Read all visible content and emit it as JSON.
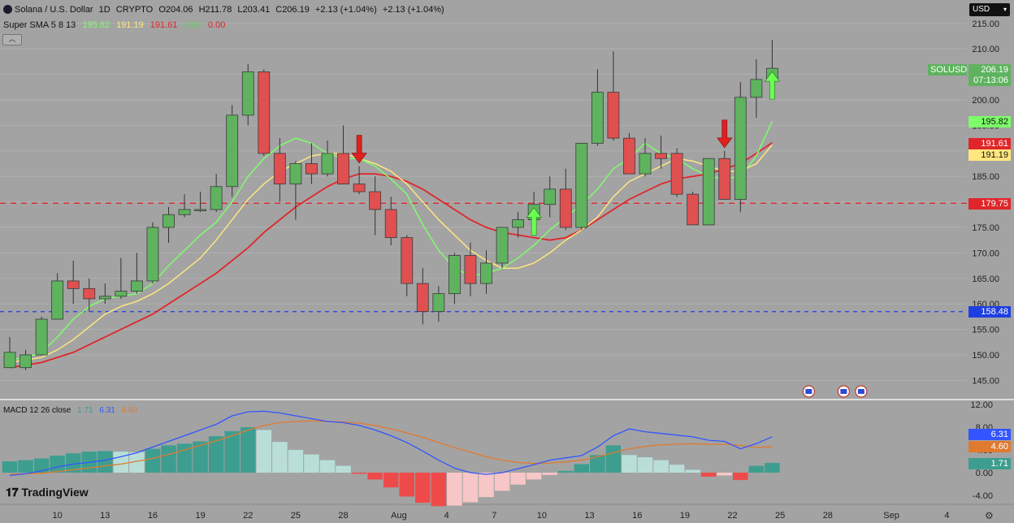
{
  "header": {
    "symbol_title": "Solana / U.S. Dollar",
    "interval": "1D",
    "market": "CRYPTO",
    "open": "O204.06",
    "high": "H211.78",
    "low": "L203.41",
    "close": "C206.19",
    "change": "+2.13 (+1.04%)",
    "change2": "+2.13 (+1.04%)"
  },
  "sma_legend": {
    "name": "Super SMA 5 8 13",
    "v1": "195.82",
    "v2": "191.19",
    "v3": "191.61",
    "v4": "0.00",
    "v5": "0.00"
  },
  "macd_legend": {
    "name": "MACD 12 26 close",
    "hist": "1.71",
    "macd": "6.31",
    "signal": "4.60"
  },
  "currency_button": "USD",
  "brand": "TradingView",
  "price_tags": {
    "symbol": "SOLUSD",
    "last": "206.19",
    "countdown": "07:13:06",
    "sma5": "195.82",
    "sma13": "191.61",
    "sma8": "191.19",
    "red_line": "179.75",
    "blue_line": "158.48",
    "macd": "6.31",
    "signal": "4.60",
    "hist": "1.71"
  },
  "colors": {
    "up": "#5fb35f",
    "down": "#e05050",
    "sma5": "#7dff6a",
    "sma8": "#ffe680",
    "sma13": "#e0262a",
    "red_line": "#e0262a",
    "blue_line": "#1e3fe0",
    "macd_line": "#3355ff",
    "signal_line": "#e07a30",
    "hist_up_strong": "#3d9e8f",
    "hist_up_weak": "#b9ded8",
    "hist_down_strong": "#ef4a4a",
    "hist_down_weak": "#f7c6c6",
    "background": "#a3a3a3"
  },
  "chart_data": {
    "type": "candlestick",
    "price_axis": {
      "ticks": [
        145,
        150,
        155,
        160,
        165,
        170,
        175,
        180,
        185,
        190,
        195,
        200,
        205,
        210,
        215
      ],
      "ylim": [
        143,
        217
      ]
    },
    "macd_axis": {
      "ticks": [
        -4,
        0,
        4,
        8,
        12
      ],
      "tick_labels": [
        "-4.00",
        "0.00",
        "4.00",
        "8.00",
        "12.00"
      ],
      "ylim": [
        -5,
        13
      ]
    },
    "x_tick_labels": [
      "10",
      "13",
      "16",
      "19",
      "22",
      "25",
      "28",
      "Aug",
      "4",
      "7",
      "10",
      "13",
      "16",
      "19",
      "22",
      "25",
      "28",
      "Sep",
      "4"
    ],
    "x_tick_index": [
      3,
      6,
      9,
      12,
      15,
      18,
      21,
      24.5,
      27.5,
      30.5,
      33.5,
      36.5,
      39.5,
      42.5,
      45.5,
      48.5,
      51.5,
      55.5,
      59
    ],
    "candles": [
      {
        "o": 147.5,
        "h": 153.5,
        "l": 147.5,
        "c": 150.5
      },
      {
        "o": 147.5,
        "h": 151,
        "l": 147,
        "c": 150
      },
      {
        "o": 150,
        "h": 157.5,
        "l": 150,
        "c": 157
      },
      {
        "o": 157,
        "h": 166,
        "l": 157,
        "c": 164.5
      },
      {
        "o": 164.5,
        "h": 168.5,
        "l": 160,
        "c": 163
      },
      {
        "o": 163,
        "h": 165,
        "l": 158.5,
        "c": 161
      },
      {
        "o": 161,
        "h": 164,
        "l": 160,
        "c": 161.5
      },
      {
        "o": 161.5,
        "h": 169,
        "l": 161,
        "c": 162.5
      },
      {
        "o": 162.5,
        "h": 170,
        "l": 162,
        "c": 164.5
      },
      {
        "o": 164.5,
        "h": 176,
        "l": 164,
        "c": 175
      },
      {
        "o": 175,
        "h": 179,
        "l": 172,
        "c": 177.5
      },
      {
        "o": 177.5,
        "h": 181.5,
        "l": 177,
        "c": 178.5
      },
      {
        "o": 178.5,
        "h": 182,
        "l": 178,
        "c": 178.5
      },
      {
        "o": 178.5,
        "h": 185.5,
        "l": 178,
        "c": 183
      },
      {
        "o": 183,
        "h": 199,
        "l": 181,
        "c": 197
      },
      {
        "o": 197,
        "h": 207,
        "l": 195,
        "c": 205.5
      },
      {
        "o": 205.5,
        "h": 206,
        "l": 189,
        "c": 189.5
      },
      {
        "o": 189.5,
        "h": 192.5,
        "l": 180,
        "c": 183.5
      },
      {
        "o": 183.5,
        "h": 188,
        "l": 176.5,
        "c": 187.5
      },
      {
        "o": 187.5,
        "h": 191.5,
        "l": 183.5,
        "c": 185.5
      },
      {
        "o": 185.5,
        "h": 192,
        "l": 185,
        "c": 189.5
      },
      {
        "o": 189.5,
        "h": 195,
        "l": 183.5,
        "c": 183.5
      },
      {
        "o": 183.5,
        "h": 187,
        "l": 181.5,
        "c": 182
      },
      {
        "o": 182,
        "h": 185,
        "l": 173.5,
        "c": 178.5
      },
      {
        "o": 178.5,
        "h": 181,
        "l": 171.5,
        "c": 173
      },
      {
        "o": 173,
        "h": 173.5,
        "l": 161.5,
        "c": 164
      },
      {
        "o": 164,
        "h": 167,
        "l": 156,
        "c": 158.5
      },
      {
        "o": 158.5,
        "h": 163.5,
        "l": 156.5,
        "c": 162
      },
      {
        "o": 162,
        "h": 170,
        "l": 160,
        "c": 169.5
      },
      {
        "o": 169.5,
        "h": 172,
        "l": 161.5,
        "c": 164
      },
      {
        "o": 164,
        "h": 170.5,
        "l": 162,
        "c": 168
      },
      {
        "o": 168,
        "h": 174.5,
        "l": 167,
        "c": 175
      },
      {
        "o": 175,
        "h": 178,
        "l": 173,
        "c": 176.5
      },
      {
        "o": 176.5,
        "h": 182,
        "l": 176,
        "c": 179.5
      },
      {
        "o": 179.5,
        "h": 185,
        "l": 177,
        "c": 182.5
      },
      {
        "o": 182.5,
        "h": 186.5,
        "l": 174.5,
        "c": 175
      },
      {
        "o": 175,
        "h": 191.5,
        "l": 174.5,
        "c": 191.5
      },
      {
        "o": 191.5,
        "h": 206,
        "l": 191,
        "c": 201.5
      },
      {
        "o": 201.5,
        "h": 209.5,
        "l": 192,
        "c": 192.5
      },
      {
        "o": 192.5,
        "h": 193.5,
        "l": 185.5,
        "c": 185.5
      },
      {
        "o": 185.5,
        "h": 192.5,
        "l": 185,
        "c": 189.5
      },
      {
        "o": 189.5,
        "h": 193,
        "l": 186.5,
        "c": 188.5
      },
      {
        "o": 189.5,
        "h": 190.5,
        "l": 181,
        "c": 181.5
      },
      {
        "o": 181.5,
        "h": 182,
        "l": 176,
        "c": 175.5
      },
      {
        "o": 175.5,
        "h": 188.5,
        "l": 175.5,
        "c": 188.5
      },
      {
        "o": 188.5,
        "h": 190,
        "l": 180.5,
        "c": 180.5
      },
      {
        "o": 180.5,
        "h": 203.5,
        "l": 178,
        "c": 200.5
      },
      {
        "o": 200.5,
        "h": 208,
        "l": 196.5,
        "c": 204
      },
      {
        "o": 204.06,
        "h": 211.78,
        "l": 203.41,
        "c": 206.19
      }
    ],
    "sma5": [
      149,
      149.5,
      150.5,
      153.5,
      157,
      159.5,
      161,
      161.5,
      162,
      164,
      167.5,
      170.5,
      173.5,
      176,
      180,
      185,
      188.5,
      191,
      192.5,
      191.5,
      189.5,
      188.5,
      188.5,
      187,
      184.5,
      181.5,
      175.5,
      170.5,
      167,
      165.5,
      166,
      167,
      169,
      171.5,
      174.5,
      177,
      179.5,
      182.5,
      186.5,
      188.5,
      191.5,
      189.5,
      188.5,
      186.5,
      185,
      184.5,
      185,
      189,
      195.82
    ],
    "sma8": [
      148.5,
      149,
      149.5,
      151,
      153,
      155.5,
      158,
      159.5,
      160.5,
      162,
      164,
      166.5,
      169,
      172.5,
      176.5,
      180.5,
      183.5,
      186,
      187.5,
      189,
      189.5,
      189.5,
      188.5,
      187.5,
      186,
      183.5,
      180,
      176.5,
      173.5,
      170.5,
      168.5,
      167,
      167,
      168,
      170,
      172.5,
      174.5,
      177,
      181,
      184,
      185.5,
      187,
      188.5,
      188,
      187,
      186,
      186,
      187.5,
      191.19
    ],
    "sma13": [
      147.5,
      148,
      148.5,
      149.5,
      150.5,
      152,
      153.5,
      155,
      156.5,
      158,
      160,
      162,
      164,
      166,
      168.5,
      171,
      174,
      176.5,
      179,
      181,
      183,
      184.5,
      185.5,
      185.5,
      185,
      184,
      182.5,
      180.5,
      178.5,
      176.5,
      175,
      174,
      173.5,
      173,
      172.5,
      173,
      174.5,
      176.5,
      178.5,
      180.5,
      182,
      183.5,
      184.5,
      185,
      185.5,
      186.5,
      187.5,
      189.5,
      191.61
    ],
    "macd_line": [
      -0.5,
      -0.2,
      0.3,
      1,
      1.5,
      1.8,
      2.2,
      2.8,
      3.5,
      4.5,
      5.5,
      6.5,
      7.5,
      8.5,
      10,
      10.7,
      10.8,
      10.5,
      10,
      9.5,
      9,
      8.8,
      8.3,
      7.5,
      6.5,
      5.3,
      3.8,
      2.2,
      0.8,
      0,
      -0.3,
      0,
      0.7,
      1.4,
      2.2,
      2.6,
      3,
      4.5,
      6.5,
      7.7,
      7.2,
      6.9,
      6.6,
      6.3,
      5.7,
      5.5,
      4.2,
      5.1,
      6.31
    ],
    "signal_line": [
      -0.3,
      -0.2,
      -0.1,
      0.2,
      0.5,
      0.8,
      1.2,
      1.5,
      2,
      2.5,
      3.2,
      4,
      4.8,
      5.6,
      6.5,
      7.5,
      8.3,
      8.8,
      9,
      9.1,
      9,
      8.9,
      8.7,
      8.3,
      7.7,
      7,
      6.2,
      5.3,
      4.4,
      3.6,
      2.8,
      2.2,
      1.8,
      1.6,
      1.7,
      1.9,
      2.2,
      2.8,
      3.5,
      4.2,
      4.6,
      4.9,
      5,
      5.1,
      5,
      5,
      4.8,
      4.4,
      4.6
    ],
    "macd_hist": [
      2,
      2.2,
      2.5,
      3,
      3.4,
      3.7,
      3.8,
      3.7,
      3.6,
      4.2,
      4.8,
      5.1,
      5.5,
      6.4,
      7.3,
      8,
      7.5,
      5.4,
      4,
      3.2,
      2.2,
      1.2,
      -0.2,
      -1.2,
      -2.6,
      -4.2,
      -5.3,
      -5.9,
      -5.8,
      -5.2,
      -4.3,
      -3.2,
      -2.1,
      -1.2,
      -0.4,
      0.3,
      1.5,
      3.1,
      4.8,
      3.1,
      2.7,
      2.2,
      1.4,
      0.5,
      -0.7,
      -0.5,
      -1.3,
      1.2,
      1.71
    ],
    "levels": [
      {
        "value": 179.75,
        "color": "red"
      },
      {
        "value": 158.48,
        "color": "blue"
      }
    ],
    "signals": [
      {
        "index": 22,
        "type": "sell"
      },
      {
        "index": 33,
        "type": "buy"
      },
      {
        "index": 45,
        "type": "sell"
      },
      {
        "index": 48,
        "type": "buy"
      }
    ],
    "events": [
      {
        "index": 50.3
      },
      {
        "index": 52.5
      },
      {
        "index": 53.6
      }
    ]
  }
}
